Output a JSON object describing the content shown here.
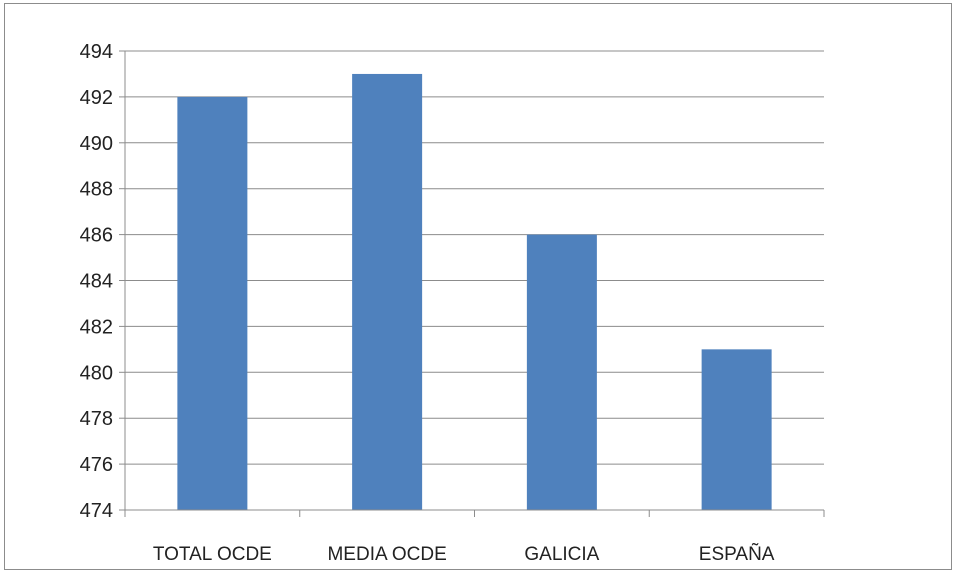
{
  "chart_data": {
    "type": "bar",
    "categories": [
      "TOTAL OCDE",
      "MEDIA OCDE",
      "GALICIA",
      "ESPAÑA"
    ],
    "values": [
      492,
      493,
      486,
      481
    ],
    "ylim": [
      474,
      494
    ],
    "yticks": [
      474,
      476,
      478,
      480,
      482,
      484,
      486,
      488,
      490,
      492,
      494
    ],
    "grid": true,
    "bar_color": "#4f81bd",
    "grid_color": "#8c8c8c"
  }
}
